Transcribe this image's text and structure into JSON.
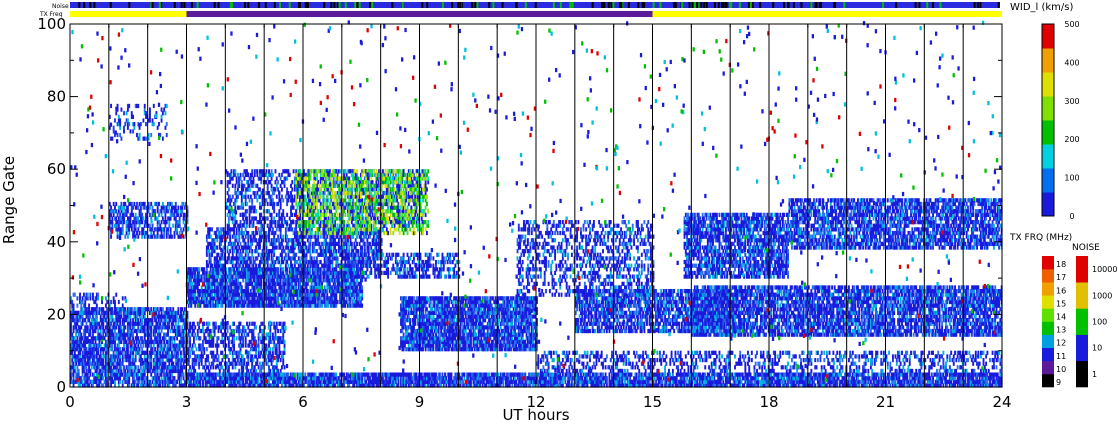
{
  "status_bars": {
    "noise_label": "Noise",
    "txfreq_label": "TX Freq"
  },
  "chart_data": {
    "type": "heatmap",
    "title": "",
    "xlabel": "UT hours",
    "ylabel": "Range Gate",
    "xlim": [
      0,
      24
    ],
    "ylim": [
      0,
      100
    ],
    "x_ticks": [
      "0",
      "3",
      "6",
      "9",
      "12",
      "15",
      "18",
      "21",
      "24"
    ],
    "y_ticks": [
      "0",
      "20",
      "40",
      "60",
      "80",
      "100"
    ],
    "grid": "vertical lines every 1 hour",
    "colors": {
      "bg_scatter": "#1a1adc",
      "noise_bar": "#2a2ae0",
      "txfreq_low": "#ffff00",
      "txfreq_mid": "#5a1a9a"
    },
    "colorbar_width": {
      "label": "WID_l (km/s)",
      "ticks": [
        "0",
        "100",
        "200",
        "300",
        "400",
        "500"
      ],
      "range": [
        0,
        500
      ]
    },
    "colorbar_txfreq": {
      "label": "TX FRQ (MHz)",
      "ticks": [
        "9",
        "10",
        "11",
        "12",
        "13",
        "14",
        "15",
        "16",
        "17",
        "18"
      ]
    },
    "colorbar_noise": {
      "label": "NOISE",
      "ticks": [
        "1",
        "10",
        "100",
        "1000",
        "10000"
      ]
    },
    "tx_freq_segments": [
      {
        "start": 0,
        "end": 3,
        "label": "low"
      },
      {
        "start": 3,
        "end": 15,
        "label": "mid"
      },
      {
        "start": 15,
        "end": 24,
        "label": "low"
      }
    ],
    "scatter_bands": [
      {
        "t0": 0.0,
        "t1": 3.0,
        "g0": 0,
        "g1": 22,
        "density": 0.75
      },
      {
        "t0": 0.0,
        "t1": 1.5,
        "g0": 22,
        "g1": 26,
        "density": 0.25
      },
      {
        "t0": 1.0,
        "t1": 3.0,
        "g0": 41,
        "g1": 51,
        "density": 0.55
      },
      {
        "t0": 1.0,
        "t1": 2.5,
        "g0": 68,
        "g1": 78,
        "density": 0.2
      },
      {
        "t0": 3.0,
        "t1": 7.5,
        "g0": 22,
        "g1": 33,
        "density": 0.85
      },
      {
        "t0": 3.5,
        "t1": 8.0,
        "g0": 33,
        "g1": 44,
        "density": 0.6
      },
      {
        "t0": 4.0,
        "t1": 9.0,
        "g0": 44,
        "g1": 60,
        "density": 0.45
      },
      {
        "t0": 3.0,
        "t1": 5.5,
        "g0": 3,
        "g1": 18,
        "density": 0.5
      },
      {
        "t0": 3.0,
        "t1": 24.0,
        "g0": 0,
        "g1": 4,
        "density": 0.85
      },
      {
        "t0": 8.5,
        "t1": 12.0,
        "g0": 10,
        "g1": 25,
        "density": 0.85
      },
      {
        "t0": 7.0,
        "t1": 10.0,
        "g0": 30,
        "g1": 37,
        "density": 0.5
      },
      {
        "t0": 11.5,
        "t1": 15.0,
        "g0": 25,
        "g1": 46,
        "density": 0.35
      },
      {
        "t0": 13.0,
        "t1": 17.0,
        "g0": 15,
        "g1": 27,
        "density": 0.7
      },
      {
        "t0": 16.0,
        "t1": 24.0,
        "g0": 14,
        "g1": 28,
        "density": 0.75
      },
      {
        "t0": 15.8,
        "t1": 18.5,
        "g0": 30,
        "g1": 48,
        "density": 0.7
      },
      {
        "t0": 18.5,
        "t1": 24.0,
        "g0": 38,
        "g1": 52,
        "density": 0.7
      },
      {
        "t0": 12.0,
        "t1": 24.0,
        "g0": 4,
        "g1": 10,
        "density": 0.35
      }
    ],
    "hot_patch": {
      "t0": 5.8,
      "t1": 9.2,
      "g0": 42,
      "g1": 60,
      "note": "green-yellow high width region"
    }
  }
}
